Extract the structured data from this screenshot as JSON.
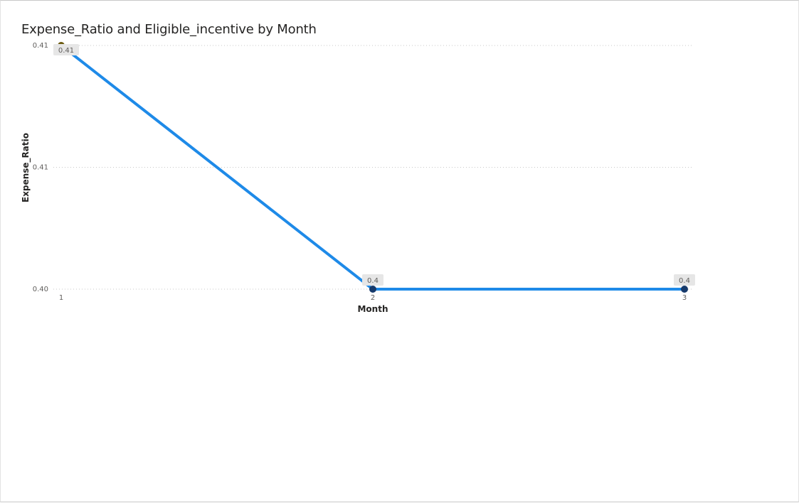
{
  "chart_data": {
    "type": "line",
    "title": "Expense_Ratio and Eligible_incentive by Month",
    "xlabel": "Month",
    "ylabel": "Expense_Ratio",
    "categories": [
      "1",
      "2",
      "3"
    ],
    "y_ticks": [
      "0.40",
      "0.41",
      "0.41"
    ],
    "ylim": [
      0.4,
      0.41
    ],
    "grid": true,
    "series": [
      {
        "values": [
          0.41,
          0.4,
          0.4
        ],
        "data_labels": [
          "0.41",
          "0.4",
          "0.4"
        ]
      }
    ]
  },
  "colors": {
    "line": "#1e8ae8",
    "marker_first": "#6b5a0f",
    "marker": "#173a6b",
    "label_background": "#e6e6e6",
    "gridline": "#c8c8c8"
  }
}
